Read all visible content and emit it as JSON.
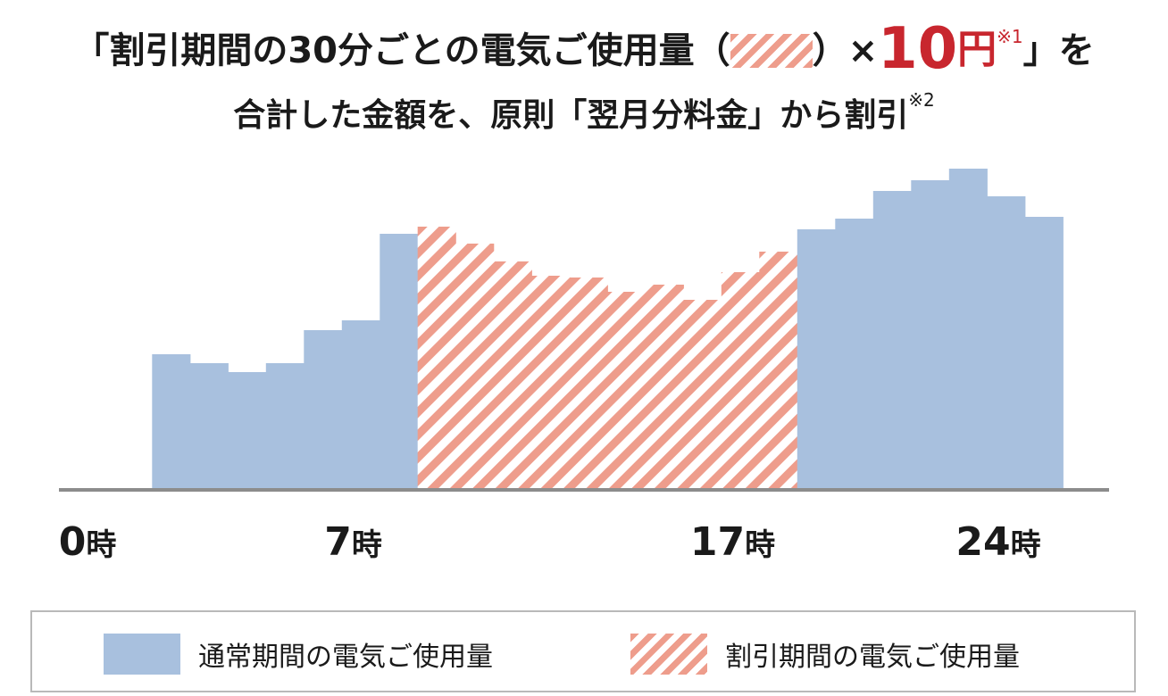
{
  "headline": {
    "line1_open": "「割引期間の30分ごとの電気ご使用量（",
    "line1_after_swatch": "）×",
    "price_number": "10",
    "price_unit": "円",
    "note1": "※1",
    "line1_close": "」を",
    "line2_text": "合計した金額を、原則「翌月分料金」から割引",
    "note2": "※2"
  },
  "colors": {
    "normal": "#a8c0de",
    "discount_stripe": "#ee9d8c",
    "accent_red": "#c8262e",
    "axis": "#8c8c8c"
  },
  "chart_data": {
    "type": "bar",
    "x_ticks": [
      {
        "hour": 0,
        "label": "0",
        "unit": "時"
      },
      {
        "hour": 7,
        "label": "7",
        "unit": "時"
      },
      {
        "hour": 17,
        "label": "17",
        "unit": "時"
      },
      {
        "hour": 24,
        "label": "24",
        "unit": "時"
      }
    ],
    "ylim": [
      0,
      360
    ],
    "grid": false,
    "legend_position": "bottom",
    "series": [
      {
        "name": "通常期間の電気ご使用量",
        "style": "solid",
        "start_hour": 1.7,
        "step_hours": 1,
        "values": [
          150,
          140,
          130,
          140,
          177,
          188
        ]
      },
      {
        "name": "通常期間の電気ご使用量",
        "style": "solid",
        "start_hour": 7.7,
        "step_hours": 1,
        "values": [
          285
        ]
      },
      {
        "name": "割引期間の電気ご使用量",
        "style": "striped",
        "start_hour": 8.7,
        "step_hours": 1,
        "values": [
          293,
          274,
          254,
          238,
          236,
          220,
          228,
          211,
          242,
          265
        ]
      },
      {
        "name": "通常期間の電気ご使用量",
        "style": "solid",
        "start_hour": 18.7,
        "step_hours": 1,
        "values": [
          290,
          302,
          333,
          345,
          358,
          327,
          304
        ]
      }
    ]
  },
  "legend": {
    "normal_label": "通常期間の電気ご使用量",
    "discount_label": "割引期間の電気ご使用量"
  }
}
